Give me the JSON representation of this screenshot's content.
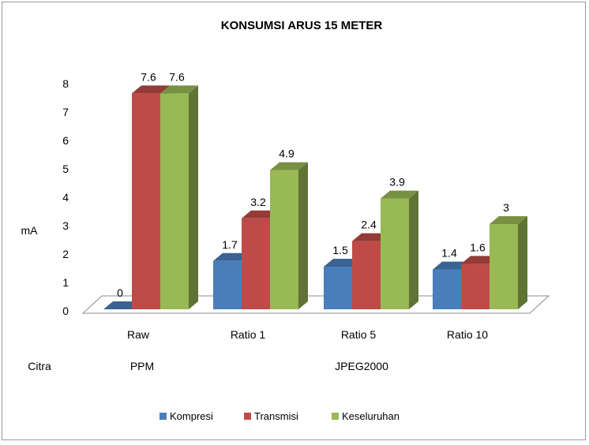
{
  "chart_data": {
    "type": "bar",
    "title": "KONSUMSI ARUS 15 METER",
    "ylabel": "mA",
    "xlabel": "Citra",
    "ylim": [
      0,
      8
    ],
    "yticks": [
      "0",
      "1",
      "2",
      "3",
      "4",
      "5",
      "6",
      "7",
      "8"
    ],
    "categories": [
      "Raw",
      "Ratio 1",
      "Ratio 5",
      "Ratio 10"
    ],
    "groups": [
      {
        "label": "PPM",
        "categories": [
          "Raw"
        ]
      },
      {
        "label": "JPEG2000",
        "categories": [
          "Ratio 1",
          "Ratio 5",
          "Ratio 10"
        ]
      }
    ],
    "series": [
      {
        "name": "Kompresi",
        "values": [
          0,
          1.7,
          1.5,
          1.4
        ],
        "labels": [
          "0",
          "1.7",
          "1.5",
          "1.4"
        ],
        "color": "#4a7ebb"
      },
      {
        "name": "Transmisi",
        "values": [
          7.6,
          3.2,
          2.4,
          1.6
        ],
        "labels": [
          "7.6",
          "3.2",
          "2.4",
          "1.6"
        ],
        "color": "#be4b48"
      },
      {
        "name": "Keseluruhan",
        "values": [
          7.6,
          4.9,
          3.9,
          3.0
        ],
        "labels": [
          "7.6",
          "4.9",
          "3.9",
          "3"
        ],
        "color": "#98b954"
      }
    ],
    "legend": "bottom",
    "grid": false
  }
}
